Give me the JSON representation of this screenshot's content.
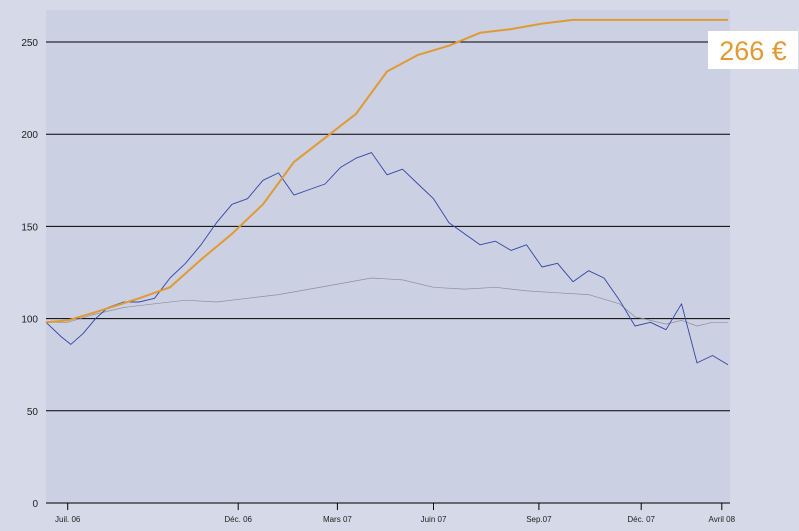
{
  "colors": {
    "background": "#d6d9e8",
    "plot_background": "#ccd0e3",
    "gridline": "#000000",
    "accent_orange": "#e09a34",
    "stock_blue": "#3346a6",
    "index_gray": "#8e9096",
    "callout_bg": "#ffffff"
  },
  "chart_data": {
    "type": "line",
    "ylim": [
      0,
      260
    ],
    "yticks": [
      0,
      50,
      100,
      150,
      200,
      250
    ],
    "xlim": [
      0,
      22.5
    ],
    "xticks": [
      {
        "label": "Juil. 06",
        "x": 0.7
      },
      {
        "label": "Déc. 06",
        "x": 6.2
      },
      {
        "label": "Mars 07",
        "x": 9.4
      },
      {
        "label": "Juin 07",
        "x": 12.5
      },
      {
        "label": "Sep.07",
        "x": 15.9
      },
      {
        "label": "Déc. 07",
        "x": 19.2
      },
      {
        "label": "Avril 08",
        "x": 21.8
      }
    ],
    "grid": true,
    "callout": {
      "text": "266 €"
    },
    "series": [
      {
        "color": "#e09a34",
        "points": [
          [
            0,
            98
          ],
          [
            0.7,
            99
          ],
          [
            1.7,
            104
          ],
          [
            3,
            111
          ],
          [
            4,
            117
          ],
          [
            5,
            132
          ],
          [
            6,
            146
          ],
          [
            7,
            162
          ],
          [
            8,
            185
          ],
          [
            9,
            198
          ],
          [
            10,
            211
          ],
          [
            11,
            234
          ],
          [
            12,
            243
          ],
          [
            13,
            248
          ],
          [
            14,
            255
          ],
          [
            15,
            257
          ],
          [
            16,
            260
          ],
          [
            17,
            262
          ],
          [
            18,
            262
          ],
          [
            19,
            262
          ],
          [
            20,
            262
          ],
          [
            21,
            262
          ],
          [
            22,
            262
          ]
        ]
      },
      {
        "color": "#3346a6",
        "points": [
          [
            0,
            98
          ],
          [
            0.5,
            90
          ],
          [
            0.8,
            86
          ],
          [
            1.2,
            92
          ],
          [
            1.6,
            100
          ],
          [
            2,
            106
          ],
          [
            2.5,
            109
          ],
          [
            3,
            109
          ],
          [
            3.5,
            111
          ],
          [
            4,
            122
          ],
          [
            4.5,
            130
          ],
          [
            5,
            140
          ],
          [
            5.5,
            152
          ],
          [
            6,
            162
          ],
          [
            6.5,
            165
          ],
          [
            7,
            175
          ],
          [
            7.5,
            179
          ],
          [
            8,
            167
          ],
          [
            8.5,
            170
          ],
          [
            9,
            173
          ],
          [
            9.5,
            182
          ],
          [
            10,
            187
          ],
          [
            10.5,
            190
          ],
          [
            11,
            178
          ],
          [
            11.5,
            181
          ],
          [
            12,
            173
          ],
          [
            12.5,
            165
          ],
          [
            13,
            152
          ],
          [
            13.5,
            146
          ],
          [
            14,
            140
          ],
          [
            14.5,
            142
          ],
          [
            15,
            137
          ],
          [
            15.5,
            140
          ],
          [
            16,
            128
          ],
          [
            16.5,
            130
          ],
          [
            17,
            120
          ],
          [
            17.5,
            126
          ],
          [
            18,
            122
          ],
          [
            18.5,
            110
          ],
          [
            19,
            96
          ],
          [
            19.5,
            98
          ],
          [
            20,
            94
          ],
          [
            20.5,
            108
          ],
          [
            21,
            76
          ],
          [
            21.5,
            80
          ],
          [
            22,
            75
          ]
        ]
      },
      {
        "color": "#8e9096",
        "points": [
          [
            0,
            98
          ],
          [
            0.7,
            98
          ],
          [
            1.5,
            102
          ],
          [
            2.5,
            106
          ],
          [
            3.5,
            108
          ],
          [
            4.5,
            110
          ],
          [
            5.5,
            109
          ],
          [
            6.5,
            111
          ],
          [
            7.5,
            113
          ],
          [
            8.5,
            116
          ],
          [
            9.5,
            119
          ],
          [
            10.5,
            122
          ],
          [
            11.5,
            121
          ],
          [
            12.5,
            117
          ],
          [
            13.5,
            116
          ],
          [
            14.5,
            117
          ],
          [
            15.5,
            115
          ],
          [
            16.5,
            114
          ],
          [
            17.5,
            113
          ],
          [
            18.5,
            108
          ],
          [
            19,
            101
          ],
          [
            19.5,
            99
          ],
          [
            20,
            97
          ],
          [
            20.5,
            99
          ],
          [
            21,
            96
          ],
          [
            21.5,
            98
          ],
          [
            22,
            98
          ]
        ]
      }
    ]
  }
}
